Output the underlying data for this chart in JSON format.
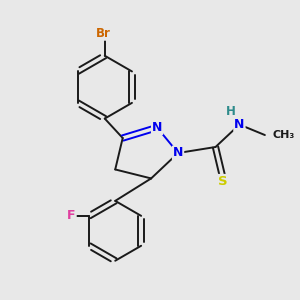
{
  "background_color": "#e8e8e8",
  "bond_color": "#1a1a1a",
  "atom_colors": {
    "Br": "#cc6600",
    "F": "#e040a0",
    "N": "#0000ee",
    "S": "#cccc00",
    "H": "#2e8b8b",
    "C": "#1a1a1a"
  },
  "bg": "#e8e8e8"
}
